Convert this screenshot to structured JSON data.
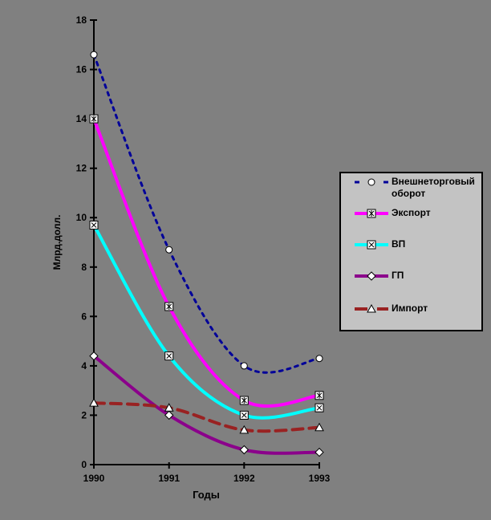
{
  "window": {
    "background_color": "#808080"
  },
  "chart_data": {
    "type": "line",
    "title": "",
    "xlabel": "Годы",
    "ylabel": "Млрд.долл.",
    "categories": [
      "1990",
      "1991",
      "1992",
      "1993"
    ],
    "ylim": [
      0,
      18
    ],
    "yticks": [
      0,
      2,
      4,
      6,
      8,
      10,
      12,
      14,
      16,
      18
    ],
    "grid": false,
    "legend_position": "right",
    "smoothed_lines": true,
    "series": [
      {
        "name": "Внешнеторговый оборот",
        "values": [
          16.6,
          8.7,
          4.0,
          4.3
        ],
        "color": "#000099",
        "line_style": "dashed",
        "marker": "circle"
      },
      {
        "name": "Экспорт",
        "values": [
          14.0,
          6.4,
          2.6,
          2.8
        ],
        "color": "#FF00FF",
        "line_style": "solid",
        "marker": "star-square"
      },
      {
        "name": "ВП",
        "values": [
          9.7,
          4.4,
          2.0,
          2.3
        ],
        "color": "#00FFFF",
        "line_style": "solid",
        "marker": "x-square"
      },
      {
        "name": "ГП",
        "values": [
          4.4,
          2.0,
          0.6,
          0.5
        ],
        "color": "#8B008B",
        "line_style": "solid",
        "marker": "diamond"
      },
      {
        "name": "Импорт",
        "values": [
          2.5,
          2.3,
          1.4,
          1.5
        ],
        "color": "#992222",
        "line_style": "long-dashed",
        "marker": "triangle"
      }
    ],
    "colors": {
      "background": "#808080",
      "legend_background": "#C3C3C3",
      "axis": "#000000",
      "text": "#000000",
      "marker_fill": "#FFFFFF",
      "marker_stroke": "#000000"
    }
  }
}
